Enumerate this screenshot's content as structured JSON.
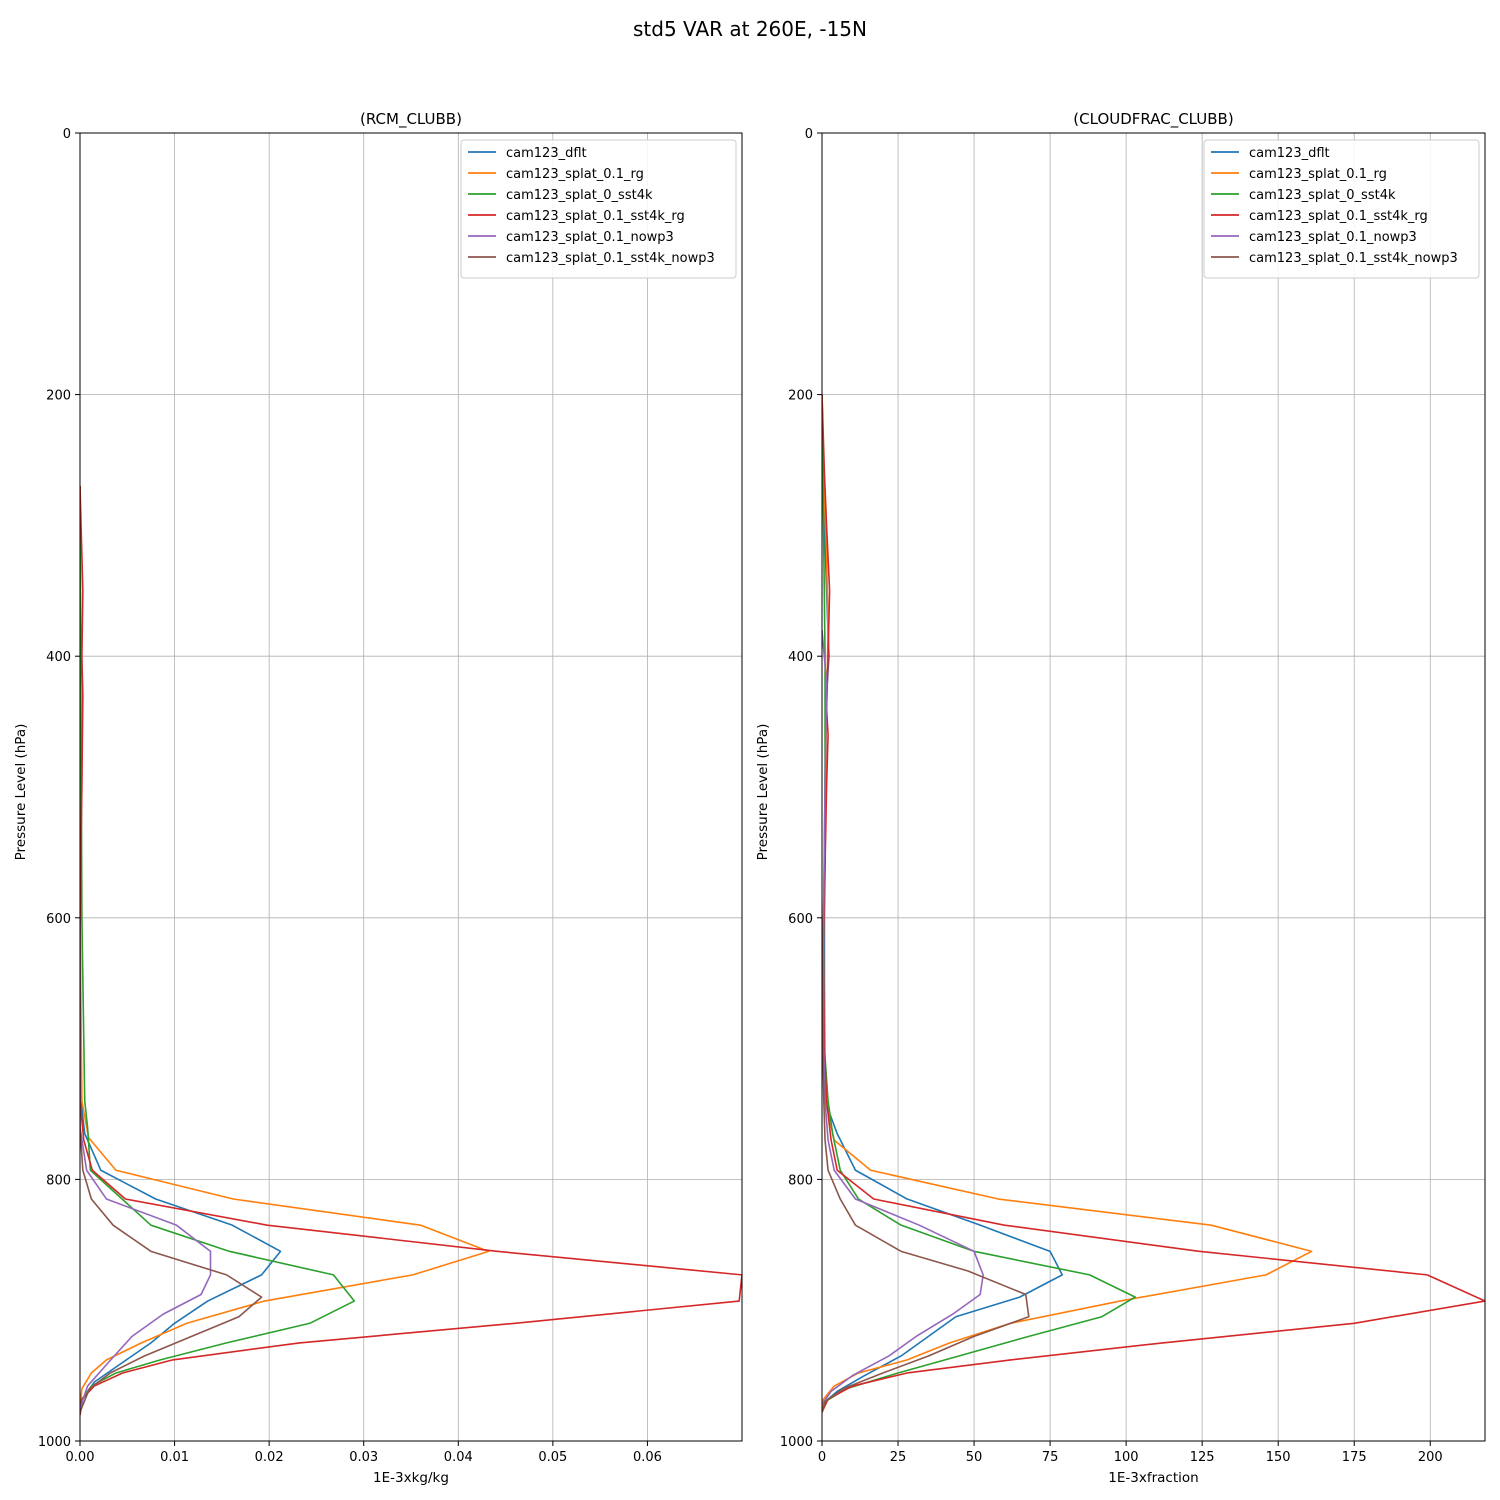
{
  "figure": {
    "suptitle": "std5 VAR at 260E, -15N"
  },
  "chart_data": [
    {
      "type": "line",
      "title": "(RCM_CLUBB)",
      "xlabel": "1E-3xkg/kg",
      "ylabel": "Pressure Level (hPa)",
      "xlim": [
        0,
        0.07
      ],
      "ylim": [
        1000,
        0
      ],
      "y_inverted": true,
      "grid": true,
      "legend_position": "upper right",
      "x_ticks": [
        "0.00",
        "0.01",
        "0.02",
        "0.03",
        "0.04",
        "0.05",
        "0.06"
      ],
      "y_ticks": [
        "0",
        "200",
        "400",
        "600",
        "800",
        "1000"
      ],
      "series": [
        {
          "name": "cam123_dflt",
          "color": "#1f77b4",
          "points": [
            [
              0.0,
              270
            ],
            [
              0.0,
              600
            ],
            [
              0.0001,
              740
            ],
            [
              0.0005,
              765
            ],
            [
              0.0022,
              793
            ],
            [
              0.008,
              815
            ],
            [
              0.0161,
              835
            ],
            [
              0.0212,
              855
            ],
            [
              0.0192,
              873
            ],
            [
              0.0135,
              893
            ],
            [
              0.01,
              910
            ],
            [
              0.0075,
              925
            ],
            [
              0.0045,
              940
            ],
            [
              0.0015,
              955
            ],
            [
              0.0003,
              968
            ],
            [
              0.0,
              980
            ]
          ]
        },
        {
          "name": "cam123_splat_0.1_rg",
          "color": "#ff7f0e",
          "points": [
            [
              0.0,
              270
            ],
            [
              0.0,
              600
            ],
            [
              0.0002,
              740
            ],
            [
              0.0009,
              768
            ],
            [
              0.0038,
              793
            ],
            [
              0.0162,
              815
            ],
            [
              0.036,
              835
            ],
            [
              0.0432,
              855
            ],
            [
              0.0352,
              873
            ],
            [
              0.0195,
              893
            ],
            [
              0.0113,
              910
            ],
            [
              0.0065,
              925
            ],
            [
              0.0028,
              938
            ],
            [
              0.0012,
              948
            ],
            [
              0.0002,
              960
            ],
            [
              0.0,
              975
            ]
          ]
        },
        {
          "name": "cam123_splat_0_sst4k",
          "color": "#2ca02c",
          "points": [
            [
              0.0,
              270
            ],
            [
              0.0002,
              600
            ],
            [
              0.0005,
              740
            ],
            [
              0.0008,
              760
            ],
            [
              0.0011,
              793
            ],
            [
              0.0075,
              835
            ],
            [
              0.0158,
              855
            ],
            [
              0.0268,
              873
            ],
            [
              0.029,
              893
            ],
            [
              0.0243,
              910
            ],
            [
              0.0155,
              925
            ],
            [
              0.0085,
              938
            ],
            [
              0.0038,
              948
            ],
            [
              0.0012,
              958
            ],
            [
              0.0002,
              968
            ],
            [
              0.0,
              978
            ]
          ]
        },
        {
          "name": "cam123_splat_0.1_sst4k_rg",
          "color": "#d62728",
          "points": [
            [
              0.0,
              270
            ],
            [
              0.0003,
              350
            ],
            [
              0.0002,
              400
            ],
            [
              0.0003,
              430
            ],
            [
              0.0002,
              500
            ],
            [
              0.0001,
              550
            ],
            [
              0.0,
              620
            ],
            [
              0.0,
              740
            ],
            [
              0.0004,
              770
            ],
            [
              0.0013,
              793
            ],
            [
              0.0048,
              815
            ],
            [
              0.0198,
              835
            ],
            [
              0.0441,
              855
            ],
            [
              0.07,
              873
            ],
            [
              0.0697,
              893
            ],
            [
              0.046,
              910
            ],
            [
              0.0232,
              925
            ],
            [
              0.0098,
              938
            ],
            [
              0.0045,
              948
            ],
            [
              0.0015,
              958
            ],
            [
              0.0002,
              968
            ],
            [
              0.0,
              980
            ]
          ]
        },
        {
          "name": "cam123_splat_0.1_nowp3",
          "color": "#9467bd",
          "points": [
            [
              0.0,
              600
            ],
            [
              0.0,
              760
            ],
            [
              0.0007,
              793
            ],
            [
              0.0028,
              815
            ],
            [
              0.0102,
              835
            ],
            [
              0.0138,
              855
            ],
            [
              0.0138,
              873
            ],
            [
              0.0128,
              888
            ],
            [
              0.0088,
              903
            ],
            [
              0.0055,
              920
            ],
            [
              0.003,
              940
            ],
            [
              0.0008,
              958
            ],
            [
              0.0,
              975
            ]
          ]
        },
        {
          "name": "cam123_splat_0.1_sst4k_nowp3",
          "color": "#8c564b",
          "points": [
            [
              0.0,
              600
            ],
            [
              0.0,
              760
            ],
            [
              0.0003,
              793
            ],
            [
              0.0012,
              815
            ],
            [
              0.0035,
              835
            ],
            [
              0.0075,
              855
            ],
            [
              0.0155,
              873
            ],
            [
              0.0192,
              890
            ],
            [
              0.0168,
              905
            ],
            [
              0.0118,
              920
            ],
            [
              0.0068,
              935
            ],
            [
              0.0032,
              948
            ],
            [
              0.001,
              960
            ],
            [
              0.0,
              978
            ]
          ]
        }
      ]
    },
    {
      "type": "line",
      "title": "(CLOUDFRAC_CLUBB)",
      "xlabel": "1E-3xfraction",
      "ylabel": "Pressure Level (hPa)",
      "xlim": [
        0,
        218
      ],
      "ylim": [
        1000,
        0
      ],
      "y_inverted": true,
      "grid": true,
      "legend_position": "upper right",
      "x_ticks": [
        "0",
        "25",
        "50",
        "75",
        "100",
        "125",
        "150",
        "175",
        "200"
      ],
      "y_ticks": [
        "0",
        "200",
        "400",
        "600",
        "800",
        "1000"
      ],
      "series": [
        {
          "name": "cam123_dflt",
          "color": "#1f77b4",
          "points": [
            [
              0.0,
              200
            ],
            [
              0.8,
              300
            ],
            [
              1.8,
              370
            ],
            [
              2.3,
              400
            ],
            [
              1.2,
              440
            ],
            [
              1.3,
              480
            ],
            [
              1.0,
              560
            ],
            [
              0.8,
              600
            ],
            [
              0.8,
              650
            ],
            [
              1.0,
              740
            ],
            [
              5.0,
              765
            ],
            [
              11,
              793
            ],
            [
              28,
              815
            ],
            [
              52,
              835
            ],
            [
              75,
              855
            ],
            [
              79,
              873
            ],
            [
              65,
              890
            ],
            [
              44,
              905
            ],
            [
              35,
              920
            ],
            [
              26,
              935
            ],
            [
              14,
              950
            ],
            [
              5,
              962
            ],
            [
              1,
              970
            ],
            [
              0,
              978
            ]
          ]
        },
        {
          "name": "cam123_splat_0.1_rg",
          "color": "#ff7f0e",
          "points": [
            [
              0.0,
              200
            ],
            [
              0.8,
              280
            ],
            [
              1.5,
              320
            ],
            [
              2.0,
              380
            ],
            [
              1.5,
              440
            ],
            [
              1.0,
              520
            ],
            [
              0.5,
              600
            ],
            [
              0.4,
              700
            ],
            [
              1.2,
              740
            ],
            [
              4,
              770
            ],
            [
              16,
              793
            ],
            [
              58,
              815
            ],
            [
              128,
              835
            ],
            [
              161,
              855
            ],
            [
              146,
              873
            ],
            [
              98,
              893
            ],
            [
              62,
              910
            ],
            [
              42,
              925
            ],
            [
              28,
              938
            ],
            [
              12,
              948
            ],
            [
              4,
              958
            ],
            [
              0.5,
              968
            ],
            [
              0,
              976
            ]
          ]
        },
        {
          "name": "cam123_splat_0_sst4k",
          "color": "#2ca02c",
          "points": [
            [
              0.0,
              200
            ],
            [
              0.5,
              300
            ],
            [
              1.0,
              400
            ],
            [
              1.0,
              480
            ],
            [
              0.8,
              560
            ],
            [
              0.6,
              620
            ],
            [
              0.8,
              700
            ],
            [
              2.0,
              740
            ],
            [
              3.5,
              765
            ],
            [
              6,
              793
            ],
            [
              12,
              815
            ],
            [
              26,
              835
            ],
            [
              50,
              855
            ],
            [
              88,
              873
            ],
            [
              103,
              890
            ],
            [
              92,
              905
            ],
            [
              68,
              920
            ],
            [
              45,
              935
            ],
            [
              25,
              948
            ],
            [
              8,
              960
            ],
            [
              1,
              970
            ],
            [
              0,
              978
            ]
          ]
        },
        {
          "name": "cam123_splat_0.1_sst4k_rg",
          "color": "#d62728",
          "points": [
            [
              0.0,
              200
            ],
            [
              0.8,
              260
            ],
            [
              1.5,
              300
            ],
            [
              2.5,
              350
            ],
            [
              2.0,
              400
            ],
            [
              1.5,
              440
            ],
            [
              2.0,
              460
            ],
            [
              1.5,
              500
            ],
            [
              1.0,
              560
            ],
            [
              0.5,
              620
            ],
            [
              0.8,
              700
            ],
            [
              1.5,
              740
            ],
            [
              3,
              770
            ],
            [
              5,
              793
            ],
            [
              17,
              815
            ],
            [
              60,
              835
            ],
            [
              124,
              855
            ],
            [
              199,
              873
            ],
            [
              218,
              893
            ],
            [
              175,
              910
            ],
            [
              112,
              925
            ],
            [
              62,
              938
            ],
            [
              28,
              948
            ],
            [
              10,
              958
            ],
            [
              2,
              968
            ],
            [
              0,
              978
            ]
          ]
        },
        {
          "name": "cam123_splat_0.1_nowp3",
          "color": "#9467bd",
          "points": [
            [
              0.0,
              380
            ],
            [
              1.5,
              420
            ],
            [
              1.0,
              500
            ],
            [
              0.5,
              600
            ],
            [
              0.5,
              700
            ],
            [
              1.0,
              740
            ],
            [
              2,
              770
            ],
            [
              4,
              793
            ],
            [
              11,
              815
            ],
            [
              32,
              835
            ],
            [
              50,
              855
            ],
            [
              53,
              873
            ],
            [
              52,
              888
            ],
            [
              43,
              903
            ],
            [
              31,
              920
            ],
            [
              22,
              935
            ],
            [
              10,
              950
            ],
            [
              3,
              962
            ],
            [
              0,
              972
            ]
          ]
        },
        {
          "name": "cam123_splat_0.1_sst4k_nowp3",
          "color": "#8c564b",
          "points": [
            [
              0.0,
              600
            ],
            [
              0.3,
              700
            ],
            [
              0.6,
              740
            ],
            [
              1.0,
              770
            ],
            [
              2,
              793
            ],
            [
              6,
              815
            ],
            [
              11,
              835
            ],
            [
              26,
              855
            ],
            [
              48,
              870
            ],
            [
              67,
              888
            ],
            [
              68,
              905
            ],
            [
              50,
              920
            ],
            [
              35,
              935
            ],
            [
              20,
              948
            ],
            [
              7,
              960
            ],
            [
              1,
              970
            ],
            [
              0,
              978
            ]
          ]
        }
      ]
    }
  ]
}
